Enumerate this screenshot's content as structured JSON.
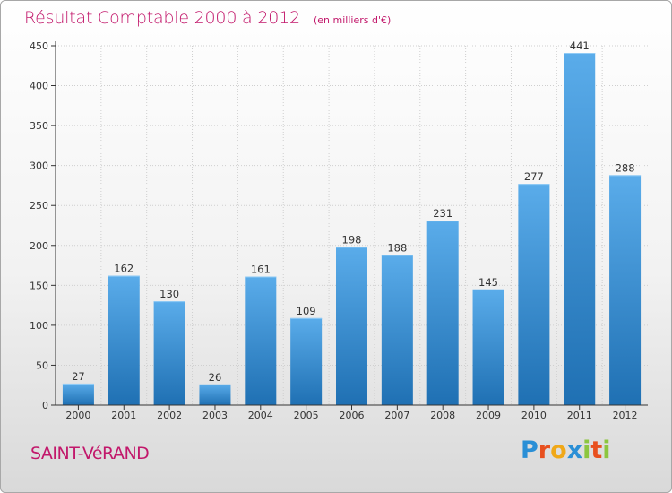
{
  "title": "Résultat Comptable 2000 à 2012",
  "subtitle": "(en milliers d'€)",
  "city": "SAINT-VéRAND",
  "logo": {
    "letters": [
      {
        "char": "P",
        "color": "#2a8fd6"
      },
      {
        "char": "r",
        "color": "#e8501f"
      },
      {
        "char": "o",
        "color": "#f0a818"
      },
      {
        "char": "x",
        "color": "#2a8fd6"
      },
      {
        "char": "i",
        "color": "#8cc63f"
      },
      {
        "char": "t",
        "color": "#e8501f"
      },
      {
        "char": "i",
        "color": "#8cc63f"
      }
    ]
  },
  "colors": {
    "accent": "#c2186b",
    "bar_light": "#5aacea",
    "bar_dark": "#1f70b3",
    "axis": "#333333"
  },
  "chart_data": {
    "type": "bar",
    "categories": [
      "2000",
      "2001",
      "2002",
      "2003",
      "2004",
      "2005",
      "2006",
      "2007",
      "2008",
      "2009",
      "2010",
      "2011",
      "2012"
    ],
    "values": [
      27,
      162,
      130,
      26,
      161,
      109,
      198,
      188,
      231,
      145,
      277,
      441,
      288
    ],
    "ylim": [
      0,
      450
    ],
    "yticks": [
      0,
      50,
      100,
      150,
      200,
      250,
      300,
      350,
      400,
      450
    ],
    "grid": true,
    "legend": "none"
  }
}
